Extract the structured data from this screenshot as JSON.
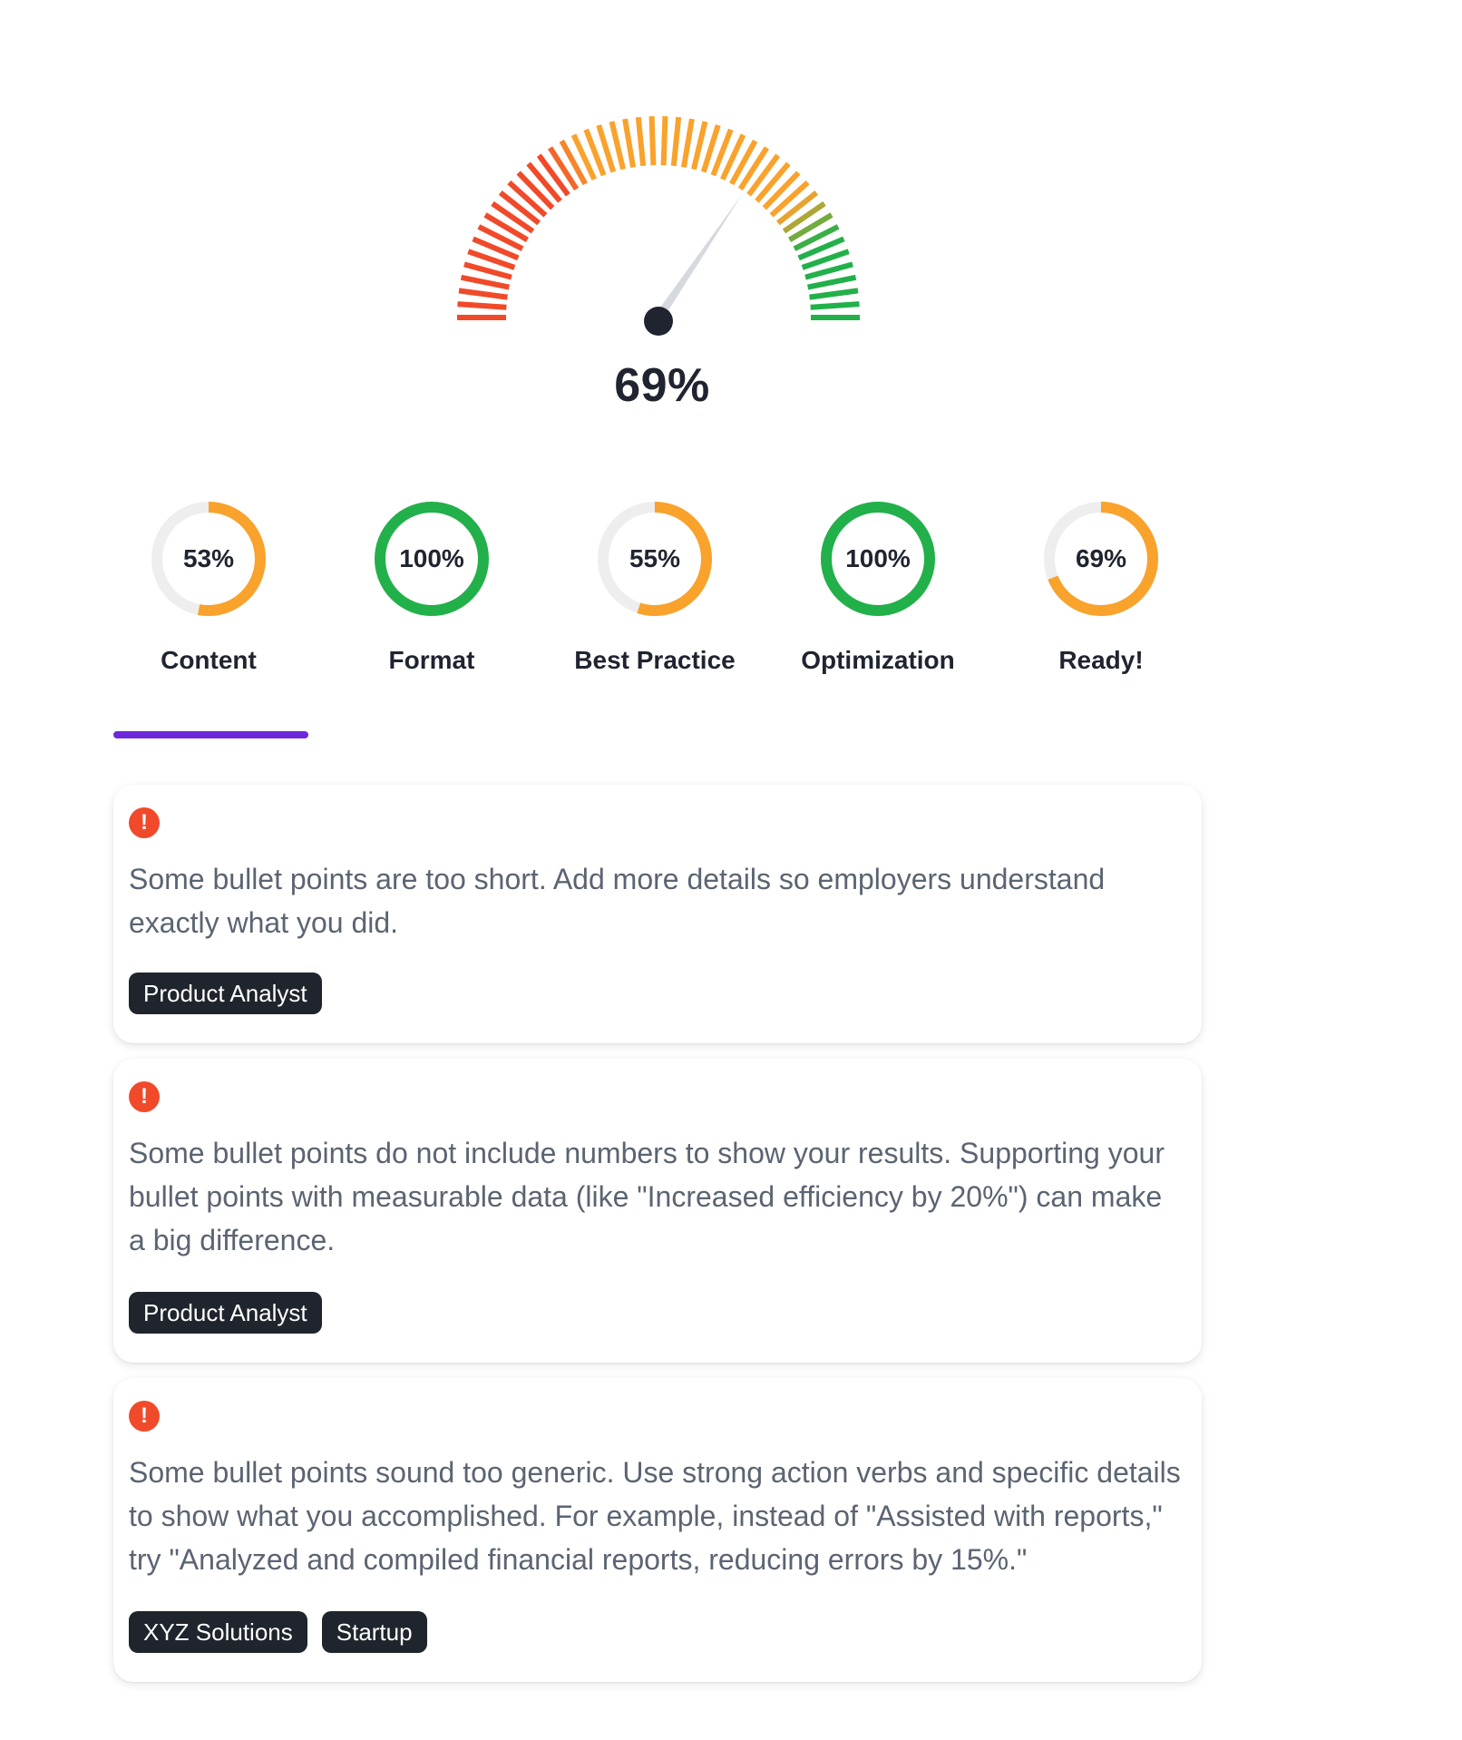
{
  "overall": {
    "score": 69,
    "score_label": "69%"
  },
  "colors": {
    "red": "#f04a2a",
    "orange": "#f9a22c",
    "green": "#22b04a",
    "track": "#eeeeee",
    "accent": "#6d28d9",
    "dark": "#1f2430"
  },
  "scores": [
    {
      "label": "Content",
      "percent": 53,
      "percent_label": "53%",
      "color": "#f9a22c"
    },
    {
      "label": "Format",
      "percent": 100,
      "percent_label": "100%",
      "color": "#22b04a"
    },
    {
      "label": "Best Practice",
      "percent": 55,
      "percent_label": "55%",
      "color": "#f9a22c"
    },
    {
      "label": "Optimization",
      "percent": 100,
      "percent_label": "100%",
      "color": "#22b04a"
    },
    {
      "label": "Ready!",
      "percent": 69,
      "percent_label": "69%",
      "color": "#f9a22c"
    }
  ],
  "selected_tab": "Content",
  "feedback": [
    {
      "icon": "exclamation-icon",
      "text": "Some bullet points are too short. Add more details so employers understand exactly what you did.",
      "tags": [
        "Product Analyst"
      ]
    },
    {
      "icon": "exclamation-icon",
      "text": "Some bullet points do not include numbers to show your results. Supporting your bullet points with measurable data (like \"Increased efficiency by 20%\") can make a big difference.",
      "tags": [
        "Product Analyst"
      ]
    },
    {
      "icon": "exclamation-icon",
      "text": "Some bullet points sound too generic. Use strong action verbs and specific details to show what you accomplished. For example, instead of \"Assisted with reports,\" try \"Analyzed and compiled financial reports, reducing errors by 15%.\"",
      "tags": [
        "XYZ Solutions",
        "Startup"
      ]
    }
  ]
}
